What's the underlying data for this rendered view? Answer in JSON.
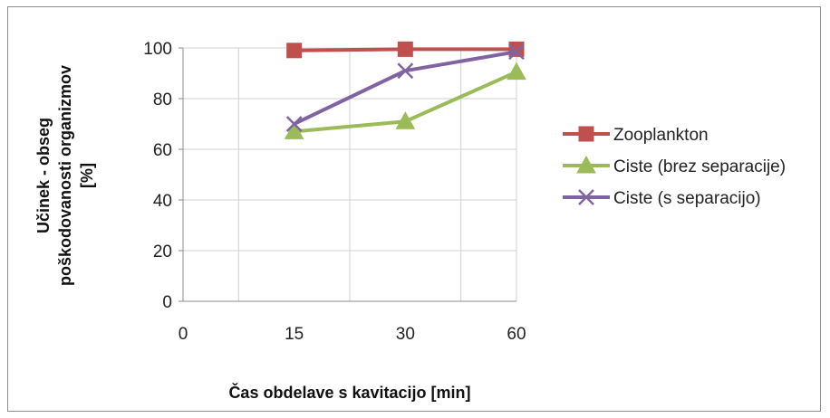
{
  "chart_data": {
    "type": "line",
    "categories": [
      "0",
      "15",
      "30",
      "60"
    ],
    "ylim": [
      0,
      100
    ],
    "yticks": [
      "0",
      "20",
      "40",
      "60",
      "80",
      "100"
    ],
    "xlabel": "Čas obdelave s kavitacijo [min]",
    "ylabel_lines": [
      "Učinek - obseg",
      "poškodovanosti organizmov",
      "[%]"
    ],
    "grid": true,
    "legend_position": "right",
    "series": [
      {
        "name": "Zooplankton",
        "color": "#c0504d",
        "marker": "square",
        "values": [
          null,
          99,
          99.5,
          99.5
        ]
      },
      {
        "name": "Ciste (brez separacije)",
        "color": "#9bbb59",
        "marker": "triangle",
        "values": [
          null,
          67,
          71,
          90.5
        ]
      },
      {
        "name": "Ciste (s separacijo)",
        "color": "#8064a2",
        "marker": "x",
        "values": [
          null,
          70,
          91,
          98.5
        ]
      }
    ]
  }
}
